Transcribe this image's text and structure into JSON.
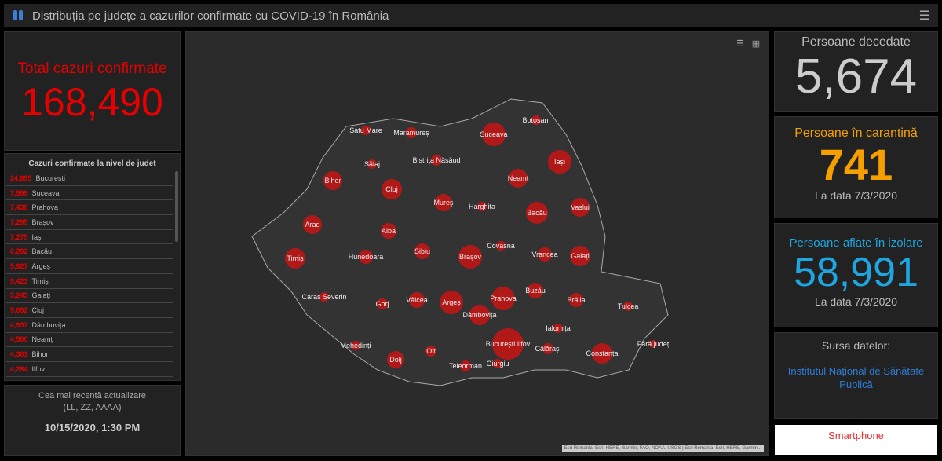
{
  "header": {
    "title": "Distribuția pe județe a cazurilor confirmate cu COVID-19 în România",
    "menu_icon": "hamburger-icon"
  },
  "total": {
    "label": "Total cazuri confirmate",
    "value": "168,490"
  },
  "list": {
    "title": "Cazuri confirmate la nivel de județ",
    "rows": [
      {
        "n": "24,895",
        "c": "București"
      },
      {
        "n": "7,599",
        "c": "Suceava"
      },
      {
        "n": "7,438",
        "c": "Prahova"
      },
      {
        "n": "7,295",
        "c": "Brașov"
      },
      {
        "n": "7,275",
        "c": "Iași"
      },
      {
        "n": "6,202",
        "c": "Bacău"
      },
      {
        "n": "5,927",
        "c": "Argeș"
      },
      {
        "n": "5,423",
        "c": "Timiș"
      },
      {
        "n": "5,243",
        "c": "Galați"
      },
      {
        "n": "5,092",
        "c": "Cluj"
      },
      {
        "n": "4,937",
        "c": "Dâmbovița"
      },
      {
        "n": "4,500",
        "c": "Neamț"
      },
      {
        "n": "4,301",
        "c": "Bihor"
      },
      {
        "n": "4,284",
        "c": "Ilfov"
      }
    ]
  },
  "update": {
    "label": "Cea mai recentă actualizare",
    "format": "(LL, ZZ, AAAA)",
    "date": "10/15/2020, 1:30 PM"
  },
  "deceased": {
    "label": "Persoane decedate",
    "value": "5,674"
  },
  "quarantine": {
    "label": "Persoane în carantină",
    "value": "741",
    "date": "La data 7/3/2020"
  },
  "isolation": {
    "label": "Persoane aflate în izolare",
    "value": "58,991",
    "date": "La data 7/3/2020"
  },
  "source": {
    "label": "Sursa datelor:",
    "link": "Institutul Național de Sănătate Publică"
  },
  "smartphone": "Smartphone",
  "map": {
    "attribution": "Esri Romania, Esri, HERE, Garmin, FAO, NOAA, USGS | Esri Romania, Esri, HERE, Garmin...",
    "counties": [
      "Satu Mare",
      "Maramureș",
      "Botoșani",
      "Suceava",
      "Sălaj",
      "Bistrița Năsăud",
      "Iași",
      "Bihor",
      "Cluj",
      "Neamț",
      "Mureș",
      "Harghita",
      "Bacău",
      "Vaslui",
      "Arad",
      "Alba",
      "Timiș",
      "Hunedoara",
      "Sibiu",
      "Brașov",
      "Covasna",
      "Vrancea",
      "Galați",
      "Caraș Severin",
      "Gorj",
      "Vâlcea",
      "Argeș",
      "Prahova",
      "Buzău",
      "Brăila",
      "Tulcea",
      "Dâmbovița",
      "Ialomița",
      "Mehedinți",
      "Dolj",
      "Olt",
      "București Ilfov",
      "Călărași",
      "Constanța",
      "Fără județ",
      "Teleorman",
      "Giurgiu"
    ]
  },
  "colors": {
    "accent_red": "#e60000",
    "quarantine": "#f5a000",
    "isolation": "#1ea6e0",
    "link": "#2e7bd6"
  }
}
